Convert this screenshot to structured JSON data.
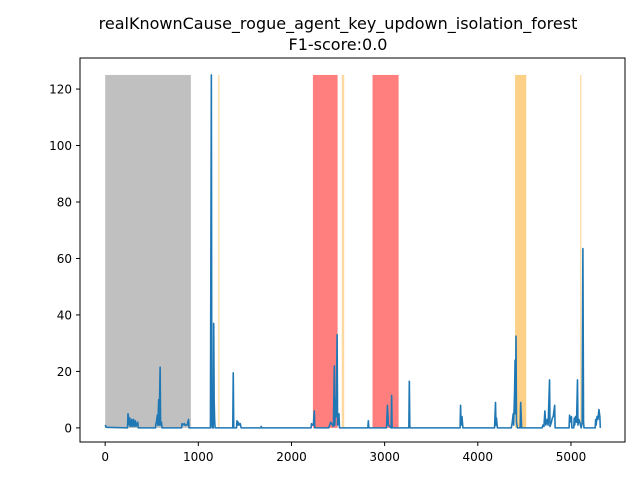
{
  "chart_data": {
    "type": "line",
    "title": "realKnownCause_rogue_agent_key_updown_isolation_forest",
    "subtitle": "F1-score:0.0",
    "xlabel": "",
    "ylabel": "",
    "xlim": [
      -270,
      5580
    ],
    "ylim": [
      -5,
      131
    ],
    "x_ticks": [
      0,
      1000,
      2000,
      3000,
      4000,
      5000
    ],
    "y_ticks": [
      0,
      20,
      40,
      60,
      80,
      100,
      120
    ],
    "grid": false,
    "colors": {
      "line": "#1f77b4",
      "gray": "#c0c0c0",
      "red": "#ff7f7f",
      "orange": "#fdd088",
      "axis": "#000000"
    },
    "bands": [
      {
        "x0": 0,
        "x1": 920,
        "color": "gray"
      },
      {
        "x0": 2230,
        "x1": 2495,
        "color": "red"
      },
      {
        "x0": 2870,
        "x1": 3150,
        "color": "red"
      },
      {
        "x0": 4400,
        "x1": 4520,
        "color": "orange"
      },
      {
        "x0": 1215,
        "x1": 1225,
        "color": "orange"
      },
      {
        "x0": 2540,
        "x1": 2550,
        "color": "orange"
      },
      {
        "x0": 2555,
        "x1": 2565,
        "color": "orange"
      },
      {
        "x0": 5100,
        "x1": 5108,
        "color": "orange"
      }
    ],
    "band_top": 125,
    "series": [
      {
        "values": [
          [
            0,
            0.5
          ],
          [
            5,
            0.8
          ],
          [
            10,
            0.2
          ],
          [
            240,
            0
          ],
          [
            245,
            5
          ],
          [
            250,
            4
          ],
          [
            255,
            2
          ],
          [
            260,
            1
          ],
          [
            265,
            3.5
          ],
          [
            270,
            0.5
          ],
          [
            285,
            3
          ],
          [
            290,
            0.5
          ],
          [
            305,
            3
          ],
          [
            310,
            0.5
          ],
          [
            325,
            2.5
          ],
          [
            330,
            0.5
          ],
          [
            350,
            2
          ],
          [
            355,
            0
          ],
          [
            540,
            0
          ],
          [
            545,
            1.5
          ],
          [
            550,
            2
          ],
          [
            560,
            4.5
          ],
          [
            565,
            1
          ],
          [
            575,
            10
          ],
          [
            580,
            1
          ],
          [
            590,
            21.5
          ],
          [
            595,
            1
          ],
          [
            605,
            2
          ],
          [
            610,
            0
          ],
          [
            820,
            0
          ],
          [
            825,
            1.5
          ],
          [
            830,
            1
          ],
          [
            850,
            1.5
          ],
          [
            855,
            1
          ],
          [
            880,
            1
          ],
          [
            895,
            3
          ],
          [
            900,
            0
          ],
          [
            1130,
            0
          ],
          [
            1140,
            125
          ],
          [
            1145,
            2
          ],
          [
            1150,
            0
          ],
          [
            1160,
            0
          ],
          [
            1165,
            37
          ],
          [
            1170,
            10
          ],
          [
            1175,
            3
          ],
          [
            1180,
            0
          ],
          [
            1370,
            0
          ],
          [
            1375,
            19.5
          ],
          [
            1380,
            0
          ],
          [
            1410,
            0
          ],
          [
            1415,
            2.5
          ],
          [
            1420,
            1
          ],
          [
            1430,
            2
          ],
          [
            1435,
            1
          ],
          [
            1450,
            1.5
          ],
          [
            1460,
            0
          ],
          [
            1670,
            0
          ],
          [
            1675,
            0.5
          ],
          [
            1680,
            0
          ],
          [
            2210,
            0
          ],
          [
            2215,
            1.5
          ],
          [
            2220,
            1
          ],
          [
            2235,
            1
          ],
          [
            2245,
            6
          ],
          [
            2250,
            0
          ],
          [
            2400,
            0
          ],
          [
            2410,
            1
          ],
          [
            2420,
            2
          ],
          [
            2450,
            0.5
          ],
          [
            2460,
            22
          ],
          [
            2465,
            1
          ],
          [
            2475,
            10
          ],
          [
            2480,
            4
          ],
          [
            2490,
            33
          ],
          [
            2495,
            1
          ],
          [
            2505,
            2
          ],
          [
            2510,
            5
          ],
          [
            2515,
            0
          ],
          [
            2820,
            0
          ],
          [
            2825,
            2.5
          ],
          [
            2830,
            0
          ],
          [
            3020,
            0
          ],
          [
            3030,
            8
          ],
          [
            3040,
            1
          ],
          [
            3070,
            0
          ],
          [
            3075,
            11.5
          ],
          [
            3080,
            0
          ],
          [
            3260,
            0
          ],
          [
            3265,
            16.5
          ],
          [
            3270,
            0.5
          ],
          [
            3275,
            0
          ],
          [
            3810,
            0
          ],
          [
            3815,
            8
          ],
          [
            3820,
            1
          ],
          [
            3830,
            4
          ],
          [
            3840,
            0
          ],
          [
            4180,
            0
          ],
          [
            4190,
            9
          ],
          [
            4195,
            1
          ],
          [
            4200,
            3.5
          ],
          [
            4210,
            0
          ],
          [
            4360,
            0
          ],
          [
            4370,
            2
          ],
          [
            4380,
            5
          ],
          [
            4385,
            1
          ],
          [
            4395,
            13
          ],
          [
            4400,
            24
          ],
          [
            4405,
            5
          ],
          [
            4410,
            32.5
          ],
          [
            4415,
            2
          ],
          [
            4425,
            0
          ],
          [
            4455,
            0
          ],
          [
            4460,
            9
          ],
          [
            4465,
            5
          ],
          [
            4470,
            0
          ],
          [
            4690,
            0
          ],
          [
            4700,
            1
          ],
          [
            4710,
            0.5
          ],
          [
            4720,
            6
          ],
          [
            4730,
            1
          ],
          [
            4745,
            3
          ],
          [
            4755,
            1
          ],
          [
            4770,
            17
          ],
          [
            4775,
            0.5
          ],
          [
            4790,
            2
          ],
          [
            4800,
            3.5
          ],
          [
            4810,
            4
          ],
          [
            4825,
            8
          ],
          [
            4830,
            0
          ],
          [
            4980,
            0
          ],
          [
            4985,
            4.5
          ],
          [
            4990,
            2
          ],
          [
            5005,
            4
          ],
          [
            5010,
            0
          ],
          [
            5030,
            0
          ],
          [
            5035,
            3.5
          ],
          [
            5040,
            1
          ],
          [
            5050,
            4
          ],
          [
            5060,
            2
          ],
          [
            5070,
            17
          ],
          [
            5075,
            1
          ],
          [
            5085,
            3
          ],
          [
            5095,
            2
          ],
          [
            5110,
            0
          ],
          [
            5120,
            2
          ],
          [
            5128,
            63.5
          ],
          [
            5135,
            2
          ],
          [
            5140,
            0
          ],
          [
            5260,
            0
          ],
          [
            5265,
            3
          ],
          [
            5270,
            1
          ],
          [
            5280,
            4
          ],
          [
            5290,
            3
          ],
          [
            5300,
            6.5
          ],
          [
            5310,
            4
          ],
          [
            5315,
            0
          ]
        ]
      }
    ]
  }
}
